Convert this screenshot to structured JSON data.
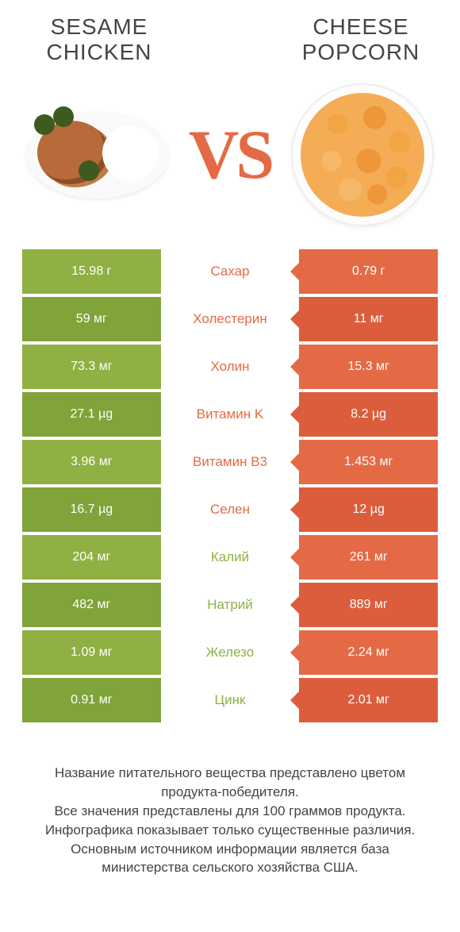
{
  "colors": {
    "green": "#8fb043",
    "green_dark": "#80a33a",
    "orange": "#e46a46",
    "orange_dark": "#dc5d3c",
    "vs": "#e46a46",
    "mid_text_green": "#8fb043",
    "mid_text_orange": "#e46a46"
  },
  "left_title": "SESAME CHICKEN",
  "right_title": "CHEESE POPCORN",
  "vs": "VS",
  "rows": [
    {
      "label": "Сахар",
      "left": "15.98 г",
      "right": "0.79 г",
      "winner": "left"
    },
    {
      "label": "Холестерин",
      "left": "59 мг",
      "right": "11 мг",
      "winner": "left"
    },
    {
      "label": "Холин",
      "left": "73.3 мг",
      "right": "15.3 мг",
      "winner": "left"
    },
    {
      "label": "Витамин K",
      "left": "27.1 µg",
      "right": "8.2 µg",
      "winner": "left"
    },
    {
      "label": "Витамин B3",
      "left": "3.96 мг",
      "right": "1.453 мг",
      "winner": "left"
    },
    {
      "label": "Селен",
      "left": "16.7 µg",
      "right": "12 µg",
      "winner": "left"
    },
    {
      "label": "Калий",
      "left": "204 мг",
      "right": "261 мг",
      "winner": "right"
    },
    {
      "label": "Натрий",
      "left": "482 мг",
      "right": "889 мг",
      "winner": "right"
    },
    {
      "label": "Железо",
      "left": "1.09 мг",
      "right": "2.24 мг",
      "winner": "right"
    },
    {
      "label": "Цинк",
      "left": "0.91 мг",
      "right": "2.01 мг",
      "winner": "right"
    }
  ],
  "footer": [
    "Название питательного вещества представлено цветом продукта-победителя.",
    "Все значения представлены для 100 граммов продукта.",
    "Инфографика показывает только существенные различия.",
    "Основным источником информации является база министерства сельского хозяйства США."
  ]
}
